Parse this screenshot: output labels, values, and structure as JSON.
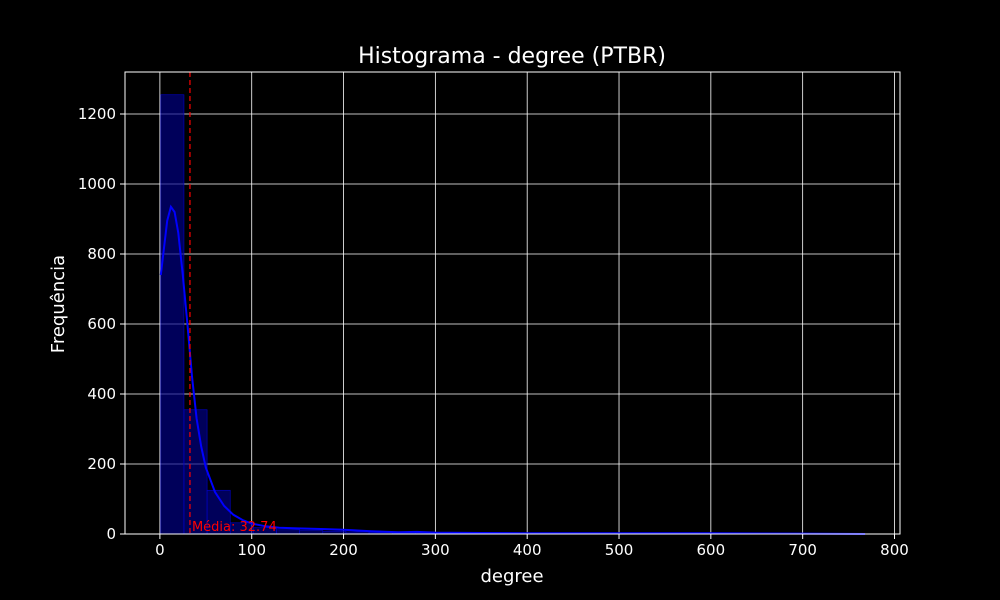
{
  "chart_data": {
    "type": "bar",
    "title": "Histograma - degree (PTBR)",
    "xlabel": "degree",
    "ylabel": "Frequência",
    "xlim": [
      -38,
      806
    ],
    "ylim": [
      0,
      1320
    ],
    "xticks": [
      0,
      100,
      200,
      300,
      400,
      500,
      600,
      700,
      800
    ],
    "yticks": [
      0,
      200,
      400,
      600,
      800,
      1000,
      1200
    ],
    "grid": true,
    "bin_width": 25.2,
    "bins": [
      {
        "x0": 1.0,
        "x1": 26.2,
        "count": 1255
      },
      {
        "x0": 26.2,
        "x1": 51.4,
        "count": 355
      },
      {
        "x0": 51.4,
        "x1": 76.6,
        "count": 125
      },
      {
        "x0": 76.6,
        "x1": 101.8,
        "count": 32
      },
      {
        "x0": 101.8,
        "x1": 127.0,
        "count": 18
      },
      {
        "x0": 127.0,
        "x1": 152.2,
        "count": 12
      },
      {
        "x0": 152.2,
        "x1": 177.4,
        "count": 10
      },
      {
        "x0": 177.4,
        "x1": 202.6,
        "count": 8
      },
      {
        "x0": 202.6,
        "x1": 227.8,
        "count": 6
      },
      {
        "x0": 227.8,
        "x1": 253.0,
        "count": 4
      },
      {
        "x0": 253.0,
        "x1": 278.2,
        "count": 3
      },
      {
        "x0": 278.2,
        "x1": 303.4,
        "count": 3
      },
      {
        "x0": 303.4,
        "x1": 328.6,
        "count": 2
      },
      {
        "x0": 328.6,
        "x1": 353.8,
        "count": 2
      },
      {
        "x0": 353.8,
        "x1": 379.0,
        "count": 2
      },
      {
        "x0": 379.0,
        "x1": 404.2,
        "count": 1
      },
      {
        "x0": 404.2,
        "x1": 429.4,
        "count": 1
      },
      {
        "x0": 429.4,
        "x1": 454.6,
        "count": 1
      },
      {
        "x0": 454.6,
        "x1": 479.8,
        "count": 1
      },
      {
        "x0": 479.8,
        "x1": 505.0,
        "count": 1
      },
      {
        "x0": 505.0,
        "x1": 530.2,
        "count": 1
      },
      {
        "x0": 530.2,
        "x1": 555.4,
        "count": 1
      },
      {
        "x0": 555.4,
        "x1": 580.6,
        "count": 1
      },
      {
        "x0": 580.6,
        "x1": 605.8,
        "count": 1
      },
      {
        "x0": 605.8,
        "x1": 631.0,
        "count": 1
      },
      {
        "x0": 631.0,
        "x1": 656.2,
        "count": 1
      },
      {
        "x0": 656.2,
        "x1": 681.4,
        "count": 1
      },
      {
        "x0": 681.4,
        "x1": 706.6,
        "count": 1
      },
      {
        "x0": 706.6,
        "x1": 731.8,
        "count": 1
      },
      {
        "x0": 731.8,
        "x1": 757.0,
        "count": 1
      }
    ],
    "kde": {
      "x": [
        1,
        8,
        12,
        16,
        20,
        25,
        30,
        35,
        40,
        45,
        50,
        60,
        70,
        80,
        90,
        100,
        115,
        130,
        150,
        165,
        180,
        200,
        230,
        260,
        280,
        300,
        350,
        400,
        500,
        600,
        700,
        768
      ],
      "y": [
        740,
        895,
        935,
        920,
        860,
        740,
        600,
        450,
        330,
        250,
        190,
        120,
        80,
        55,
        40,
        30,
        22,
        18,
        16,
        15,
        14,
        12,
        8,
        5,
        6,
        4,
        3,
        2,
        2,
        2,
        1,
        0
      ]
    },
    "mean": {
      "value": 32.74,
      "label": "Média: 32.74"
    },
    "colors": {
      "background": "#000000",
      "bar_fill": "#00008b",
      "bar_edge": "#0000cd",
      "kde_line": "#0000ff",
      "mean_line": "#ff0000",
      "grid": "#ffffff",
      "axis": "#ffffff"
    }
  }
}
